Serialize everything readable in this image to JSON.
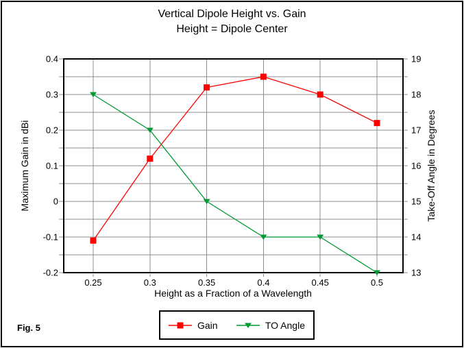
{
  "figure": {
    "caption": "Fig. 5"
  },
  "title": {
    "line1": "Vertical Dipole Height vs. Gain",
    "line2": "Height = Dipole Center"
  },
  "chart_data": {
    "type": "line",
    "x": [
      0.25,
      0.3,
      0.35,
      0.4,
      0.45,
      0.5
    ],
    "x_tick_labels": [
      "0.25",
      "0.3",
      "0.35",
      "0.4",
      "0.45",
      "0.5"
    ],
    "xlabel": "Height as a Fraction of a Wavelength",
    "series": [
      {
        "name": "Gain",
        "axis": "left",
        "color": "#ff0000",
        "marker": "square",
        "values": [
          -0.11,
          0.12,
          0.32,
          0.35,
          0.3,
          0.22
        ]
      },
      {
        "name": "TO Angle",
        "axis": "right",
        "color": "#009933",
        "marker": "triangle-down",
        "values": [
          18,
          17,
          15,
          14,
          14,
          13
        ]
      }
    ],
    "left_axis": {
      "label": "Maximum Gain in dBi",
      "min": -0.2,
      "max": 0.4,
      "major_step": 0.1,
      "minor_step": 0.05,
      "tick_labels": [
        "0.4",
        "0.3",
        "0.2",
        "0.1",
        "0",
        "-0.1",
        "-0.2"
      ]
    },
    "right_axis": {
      "label": "Take-Off Angle in Degrees",
      "min": 13,
      "max": 19,
      "major_step": 1,
      "minor_step": 0.5,
      "tick_labels": [
        "19",
        "18",
        "17",
        "16",
        "15",
        "14",
        "13"
      ]
    },
    "grid": true,
    "legend_position": "bottom-center",
    "colors": {
      "gridline": "#8c8c8c",
      "axis_frame": "#000000",
      "background": "#ffffff"
    }
  }
}
